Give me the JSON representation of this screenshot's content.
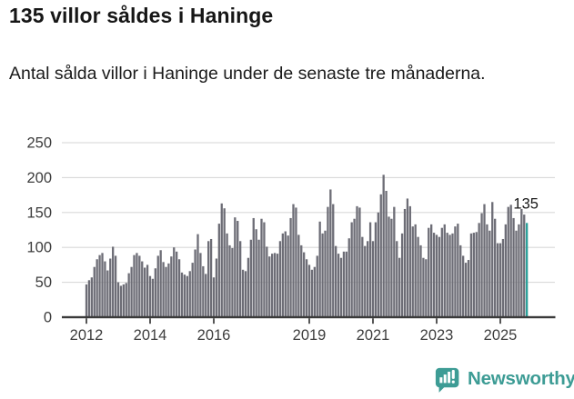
{
  "header": {
    "title": "135 villor såldes i Haninge",
    "subtitle": "Antal sålda villor i Haninge under de senaste tre månaderna."
  },
  "chart_data": {
    "type": "bar",
    "title": "135 villor såldes i Haninge",
    "subtitle": "Antal sålda villor i Haninge under de senaste tre månaderna.",
    "xlabel": "",
    "ylabel": "",
    "ylim": [
      0,
      250
    ],
    "yticks": [
      0,
      50,
      100,
      150,
      200,
      250
    ],
    "xticks": [
      2012,
      2014,
      2016,
      2019,
      2021,
      2023,
      2025
    ],
    "grid": "horizontal",
    "legend": "none",
    "frequency": "monthly",
    "start": "2012-01",
    "end": "2025-11",
    "values": [
      47,
      53,
      57,
      72,
      83,
      89,
      92,
      80,
      67,
      84,
      101,
      88,
      50,
      45,
      47,
      49,
      63,
      72,
      89,
      92,
      88,
      80,
      71,
      75,
      59,
      55,
      70,
      88,
      96,
      79,
      72,
      77,
      87,
      100,
      94,
      83,
      64,
      61,
      59,
      66,
      78,
      97,
      119,
      92,
      73,
      62,
      109,
      112,
      57,
      84,
      134,
      163,
      156,
      120,
      103,
      99,
      143,
      138,
      109,
      68,
      66,
      85,
      111,
      142,
      126,
      111,
      141,
      136,
      101,
      87,
      91,
      92,
      91,
      109,
      120,
      123,
      117,
      142,
      162,
      157,
      118,
      103,
      93,
      83,
      75,
      68,
      72,
      88,
      137,
      120,
      124,
      158,
      183,
      162,
      102,
      91,
      85,
      94,
      94,
      113,
      136,
      141,
      159,
      157,
      115,
      102,
      109,
      136,
      109,
      136,
      150,
      176,
      204,
      181,
      144,
      141,
      158,
      109,
      85,
      120,
      155,
      170,
      159,
      130,
      133,
      115,
      103,
      85,
      83,
      128,
      133,
      121,
      118,
      115,
      128,
      133,
      121,
      118,
      120,
      130,
      134,
      103,
      88,
      78,
      82,
      120,
      121,
      122,
      135,
      149,
      162,
      133,
      124,
      165,
      141,
      106,
      106,
      112,
      133,
      158,
      161,
      142,
      124,
      133,
      155,
      147,
      135
    ],
    "highlight_last_value": 135,
    "last_value_label": "135",
    "colors": {
      "bar": "#6d6d76",
      "highlight": "#29a099",
      "grid": "#d8d8d8",
      "axis": "#3a3a3a",
      "tick_label": "#3d3d3d",
      "annotation": "#1a1a1a"
    }
  },
  "footer": {
    "brand": "Newsworthy",
    "brand_color": "#3d9c95"
  }
}
